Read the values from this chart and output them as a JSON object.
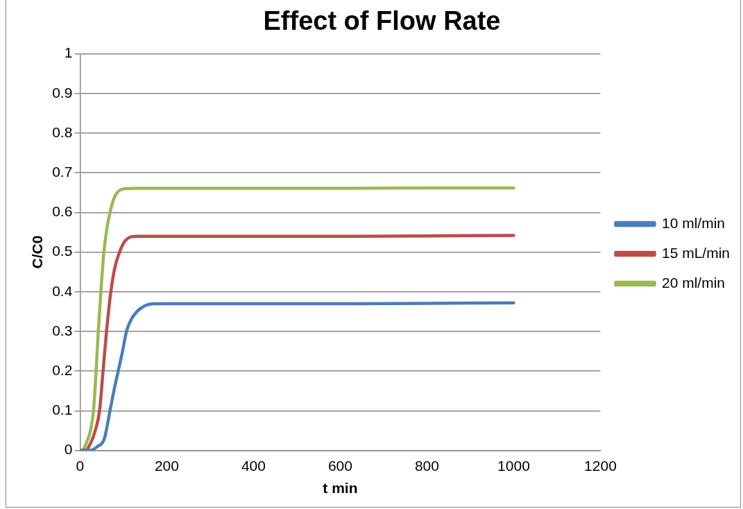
{
  "chart_data": {
    "type": "line",
    "title": "Effect of Flow Rate",
    "xlabel": "t min",
    "ylabel": "C/C0",
    "xlim": [
      0,
      1200
    ],
    "xticks": [
      0,
      200,
      400,
      600,
      800,
      1000,
      1200
    ],
    "ylim": [
      0,
      1
    ],
    "yticks": [
      0,
      0.1,
      0.2,
      0.3,
      0.4,
      0.5,
      0.6,
      0.7,
      0.8,
      0.9,
      1
    ],
    "grid": "y",
    "legend": "right",
    "marker": "none",
    "series": [
      {
        "name": "10 ml/min",
        "color": "#4a7ebb",
        "x": [
          0,
          23,
          40,
          56,
          69,
          78,
          88,
          98,
          107,
          118,
          131,
          150,
          169,
          200,
          400,
          600,
          800,
          1000
        ],
        "values": [
          0,
          0,
          0.01,
          0.03,
          0.1,
          0.15,
          0.2,
          0.25,
          0.3,
          0.33,
          0.35,
          0.365,
          0.37,
          0.37,
          0.37,
          0.37,
          0.371,
          0.372
        ]
      },
      {
        "name": "15 mL/min",
        "color": "#be4b48",
        "x": [
          0,
          12,
          25,
          35,
          45,
          53,
          61,
          71,
          80,
          91,
          105,
          131,
          160,
          400,
          600,
          800,
          1000
        ],
        "values": [
          0,
          0,
          0.02,
          0.05,
          0.1,
          0.2,
          0.3,
          0.4,
          0.46,
          0.5,
          0.53,
          0.54,
          0.54,
          0.54,
          0.54,
          0.541,
          0.542
        ]
      },
      {
        "name": "20 ml/min",
        "color": "#98b954",
        "x": [
          0,
          4,
          15,
          24,
          31,
          37,
          42,
          48,
          55,
          62,
          69,
          80,
          104,
          130,
          400,
          600,
          800,
          1000
        ],
        "values": [
          0,
          0,
          0.02,
          0.05,
          0.1,
          0.2,
          0.3,
          0.4,
          0.5,
          0.56,
          0.6,
          0.64,
          0.66,
          0.661,
          0.661,
          0.661,
          0.662,
          0.662
        ]
      }
    ]
  }
}
